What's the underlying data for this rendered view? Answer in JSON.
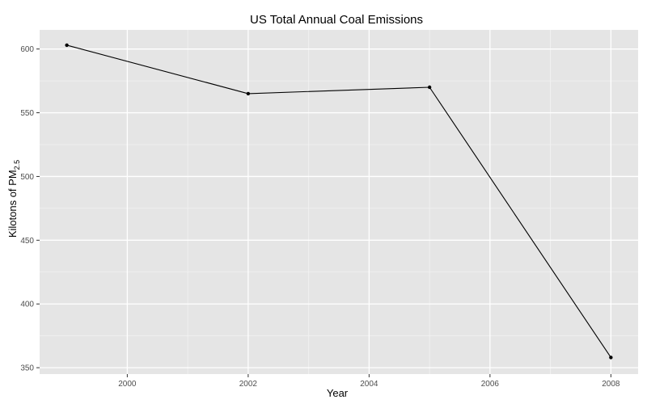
{
  "chart_data": {
    "type": "line",
    "title": "US Total Annual Coal Emissions",
    "xlabel": "Year",
    "ylabel": {
      "prefix": "Kilotons of PM",
      "subscript": "2.5"
    },
    "x": [
      1999,
      2002,
      2005,
      2008
    ],
    "series": [
      {
        "values": [
          603,
          565,
          570,
          358
        ]
      }
    ],
    "xlim": [
      1998.55,
      2008.45
    ],
    "ylim": [
      345,
      615
    ],
    "xticks": [
      2000,
      2002,
      2004,
      2006,
      2008
    ],
    "yticks": [
      350,
      400,
      450,
      500,
      550,
      600
    ],
    "grid": true,
    "legend": "none",
    "colors": {
      "panel": "#e5e5e5",
      "grid_major": "#ffffff",
      "grid_minor": "#f2f2f2",
      "line": "#000000",
      "tick_text": "#4d4d4d",
      "text": "#000000"
    }
  }
}
